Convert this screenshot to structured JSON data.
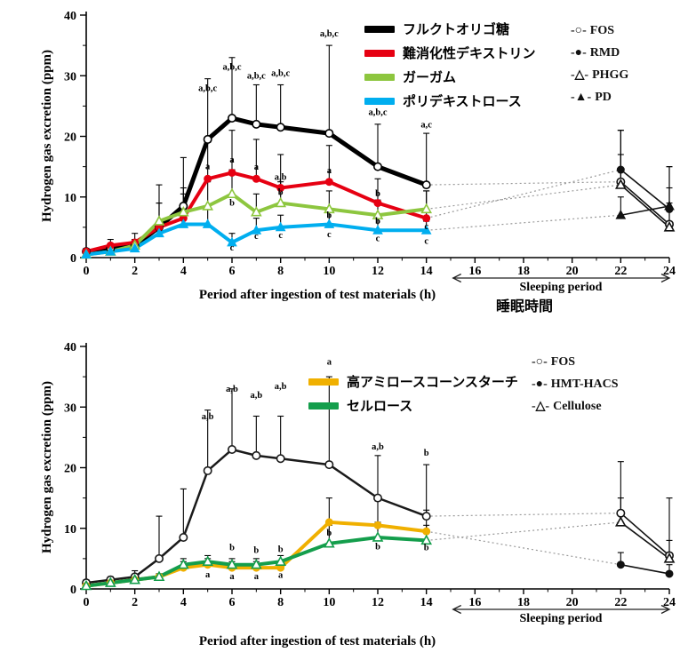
{
  "chart_data": [
    {
      "type": "line",
      "title": "",
      "ylabel": "Hydrogen gas excretion (ppm)",
      "xlabel": "Period after ingestion of test materials (h)",
      "sleeping_label": "Sleeping period",
      "sleeping_label_ja": "睡眠時間",
      "xlim": [
        0,
        24
      ],
      "ylim": [
        0,
        40
      ],
      "xticks": [
        0,
        2,
        4,
        6,
        8,
        10,
        12,
        14,
        16,
        18,
        20,
        22,
        24
      ],
      "yticks": [
        0,
        10,
        20,
        30,
        40
      ],
      "day_x": [
        0,
        1,
        2,
        3,
        4,
        5,
        6,
        7,
        8,
        10,
        12,
        14
      ],
      "sleep_x": [
        22,
        24
      ],
      "series": [
        {
          "name": "FOS",
          "ja": "フルクトオリゴ糖",
          "color": "#000000",
          "marker": "open-circle",
          "width": 5,
          "day": [
            1,
            1.5,
            2,
            5,
            8.5,
            19.5,
            23,
            22,
            21.5,
            20.5,
            15,
            12
          ],
          "err": [
            0.5,
            0.5,
            1,
            7,
            8,
            10,
            10,
            6.5,
            7,
            14.5,
            7,
            8.5
          ],
          "sleep": [
            12.5,
            5.5
          ],
          "sleep_err": [
            8.5,
            9.5
          ]
        },
        {
          "name": "RMD",
          "ja": "難消化性デキストリン",
          "color": "#e60012",
          "marker": "filled-circle",
          "width": 4,
          "day": [
            1,
            2,
            2.5,
            5,
            6.5,
            13,
            14,
            13,
            11.5,
            12.5,
            9,
            6.5
          ],
          "err": [
            0.5,
            1,
            1.5,
            4,
            5,
            6,
            7,
            6.5,
            5.5,
            6,
            4,
            4.5
          ],
          "sleep": [
            14.5,
            8
          ],
          "sleep_err": [
            6.5,
            7
          ]
        },
        {
          "name": "PHGG",
          "ja": "ガーガム",
          "color": "#8dc63f",
          "marker": "open-triangle",
          "width": 4,
          "day": [
            0.5,
            1,
            2,
            6,
            7.5,
            8.5,
            10.5,
            7.5,
            9,
            8,
            7,
            8
          ],
          "err": [
            0.3,
            0.5,
            1,
            3,
            3,
            4,
            4,
            3,
            3.5,
            3,
            2.5,
            3
          ],
          "sleep": [
            12,
            5
          ],
          "sleep_err": [
            5,
            4
          ]
        },
        {
          "name": "PD",
          "ja": "ポリデキストロース",
          "color": "#00aeef",
          "marker": "filled-triangle",
          "width": 4,
          "day": [
            0.5,
            1,
            1.5,
            4,
            5.5,
            5.5,
            2.5,
            4.5,
            5,
            5.5,
            4.5,
            4.5
          ],
          "err": [
            0.3,
            0.5,
            1,
            2,
            2.5,
            2.5,
            1.5,
            2,
            2,
            2,
            2,
            1.5
          ],
          "sleep": [
            7,
            8.5
          ],
          "sleep_err": [
            3,
            3
          ]
        }
      ],
      "legend_inner": [
        {
          "color": "#000000",
          "label": "フルクトオリゴ糖"
        },
        {
          "color": "#e60012",
          "label": "難消化性デキストリン"
        },
        {
          "color": "#8dc63f",
          "label": "ガーガム"
        },
        {
          "color": "#00aeef",
          "label": "ポリデキストロース"
        }
      ],
      "legend_right": [
        {
          "glyph": "-○-",
          "label": "FOS"
        },
        {
          "glyph": "-●-",
          "label": "RMD"
        },
        {
          "glyph": "-△-",
          "label": "PHGG"
        },
        {
          "glyph": "-▲-",
          "label": "PD"
        }
      ],
      "annotations": [
        {
          "x": 5,
          "y": 27.5,
          "text": "a,b,c"
        },
        {
          "x": 6,
          "y": 31,
          "text": "a,b,c"
        },
        {
          "x": 7,
          "y": 29.5,
          "text": "a,b,c"
        },
        {
          "x": 8,
          "y": 30,
          "text": "a,b,c"
        },
        {
          "x": 10,
          "y": 36.5,
          "text": "a,b,c"
        },
        {
          "x": 12,
          "y": 23.5,
          "text": "a,b,c"
        },
        {
          "x": 14,
          "y": 21.5,
          "text": "a,c"
        },
        {
          "x": 5,
          "y": 14.6,
          "text": "a"
        },
        {
          "x": 6,
          "y": 15.7,
          "text": "a"
        },
        {
          "x": 7,
          "y": 14.5,
          "text": "a"
        },
        {
          "x": 8,
          "y": 12.8,
          "text": "a,b"
        },
        {
          "x": 10,
          "y": 13.9,
          "text": "a"
        },
        {
          "x": 12,
          "y": 10.1,
          "text": "b"
        },
        {
          "x": 14,
          "y": 4.7,
          "text": "c"
        },
        {
          "x": 6,
          "y": 8.6,
          "text": "b"
        },
        {
          "x": 8,
          "y": 10.3,
          "text": "b"
        },
        {
          "x": 10,
          "y": 6.5,
          "text": "b"
        },
        {
          "x": 12,
          "y": 5.6,
          "text": "b"
        },
        {
          "x": 6,
          "y": 1.2,
          "text": "c"
        },
        {
          "x": 7,
          "y": 3.1,
          "text": "c"
        },
        {
          "x": 8,
          "y": 3.2,
          "text": "c"
        },
        {
          "x": 10,
          "y": 3.4,
          "text": "c"
        },
        {
          "x": 12,
          "y": 2.7,
          "text": "c"
        },
        {
          "x": 14,
          "y": 2.3,
          "text": "c"
        }
      ]
    },
    {
      "type": "line",
      "title": "",
      "ylabel": "Hydrogen gas excretion (ppm)",
      "xlabel": "Period after ingestion of test materials (h)",
      "sleeping_label": "Sleeping period",
      "xlim": [
        0,
        24
      ],
      "ylim": [
        0,
        40
      ],
      "xticks": [
        0,
        2,
        4,
        6,
        8,
        10,
        12,
        14,
        16,
        18,
        20,
        22,
        24
      ],
      "yticks": [
        0,
        10,
        20,
        30,
        40
      ],
      "day_x": [
        0,
        1,
        2,
        3,
        4,
        5,
        6,
        7,
        8,
        10,
        12,
        14
      ],
      "sleep_x": [
        22,
        24
      ],
      "series": [
        {
          "name": "FOS",
          "color": "#1a1a1a",
          "marker": "open-circle",
          "width": 2.5,
          "day": [
            1,
            1.5,
            2,
            5,
            8.5,
            19.5,
            23,
            22,
            21.5,
            20.5,
            15,
            12
          ],
          "err": [
            0.5,
            0.5,
            1,
            7,
            8,
            10,
            10,
            6.5,
            7,
            14.5,
            7,
            8.5
          ],
          "sleep": [
            12.5,
            5.5
          ],
          "sleep_err": [
            8.5,
            9.5
          ]
        },
        {
          "name": "HMT-HACS",
          "ja": "高アミロースコーンスターチ",
          "color": "#f0b000",
          "marker": "filled-circle",
          "width": 4,
          "day": [
            0.5,
            1,
            1.5,
            2,
            3.5,
            4,
            3.5,
            3.5,
            3.5,
            11,
            10.5,
            9.5
          ],
          "err": [
            0.3,
            0.5,
            0.5,
            0.5,
            1,
            1,
            1,
            1,
            1,
            4,
            4,
            3.5
          ],
          "sleep": [
            4,
            2.5
          ],
          "sleep_err": [
            2,
            1.5
          ]
        },
        {
          "name": "Cellulose",
          "ja": "セルロース",
          "color": "#149e4c",
          "marker": "open-triangle",
          "width": 4,
          "day": [
            0.5,
            1,
            1.5,
            2,
            4,
            4.5,
            4,
            4,
            4.5,
            7.5,
            8.5,
            8
          ],
          "err": [
            0.3,
            0.5,
            0.5,
            0.5,
            1,
            1,
            1,
            1,
            1,
            3,
            2.5,
            2.5
          ],
          "sleep": [
            11,
            5
          ],
          "sleep_err": [
            4,
            3
          ]
        }
      ],
      "legend_inner": [
        {
          "color": "#f0b000",
          "label": "高アミロースコーンスターチ"
        },
        {
          "color": "#149e4c",
          "label": "セルロース"
        }
      ],
      "legend_right": [
        {
          "glyph": "-○-",
          "label": "FOS"
        },
        {
          "glyph": "-●-",
          "label": "HMT-HACS"
        },
        {
          "glyph": "-△-",
          "label": "Cellulose"
        }
      ],
      "annotations": [
        {
          "x": 5,
          "y": 28,
          "text": "a,b"
        },
        {
          "x": 6,
          "y": 32.5,
          "text": "a,b"
        },
        {
          "x": 7,
          "y": 31.5,
          "text": "a,b"
        },
        {
          "x": 8,
          "y": 33,
          "text": "a,b"
        },
        {
          "x": 10,
          "y": 37,
          "text": "a"
        },
        {
          "x": 12,
          "y": 23,
          "text": "a,b"
        },
        {
          "x": 14,
          "y": 22,
          "text": "b"
        },
        {
          "x": 5,
          "y": 1.9,
          "text": "a"
        },
        {
          "x": 6,
          "y": 6.4,
          "text": "b"
        },
        {
          "x": 6,
          "y": 1.6,
          "text": "a"
        },
        {
          "x": 7,
          "y": 5.9,
          "text": "b"
        },
        {
          "x": 7,
          "y": 1.6,
          "text": "a"
        },
        {
          "x": 8,
          "y": 6.1,
          "text": "b"
        },
        {
          "x": 8,
          "y": 1.8,
          "text": "a"
        },
        {
          "x": 10,
          "y": 8.8,
          "text": "b"
        },
        {
          "x": 12,
          "y": 6.5,
          "text": "b"
        },
        {
          "x": 14,
          "y": 6.4,
          "text": "b"
        }
      ]
    }
  ]
}
